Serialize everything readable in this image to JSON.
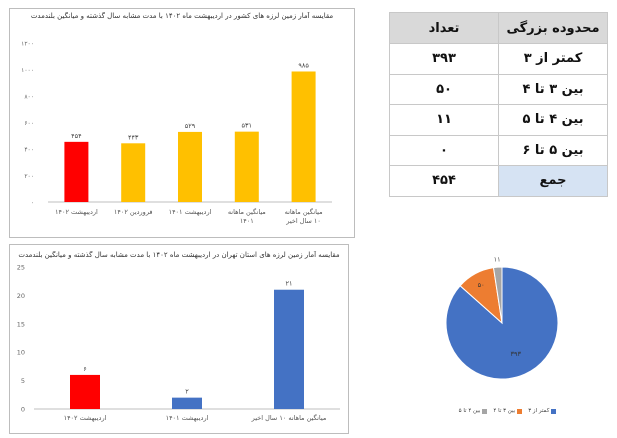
{
  "chart_data": [
    {
      "type": "bar",
      "title": "مقایسه آمار زمین لرزه های کشور در اردیبهشت ماه ۱۴۰۲ با مدت مشابه سال گذشته و میانگین بلندمدت",
      "categories": [
        "اردیبهشت ۱۴۰۲",
        "فروردین ۱۴۰۲",
        "اردیبهشت ۱۴۰۱",
        "میانگین ماهانه ۱۴۰۱",
        "میانگین ماهانه ۱۰ سال اخیر"
      ],
      "values": [
        454,
        443,
        529,
        531,
        985
      ],
      "value_labels": [
        "۴۵۴",
        "۴۴۳",
        "۵۲۹",
        "۵۳۱",
        "۹۸۵"
      ],
      "bar_colors": [
        "#ff0000",
        "#ffc000",
        "#ffc000",
        "#ffc000",
        "#ffc000"
      ],
      "ylim": [
        0,
        1200
      ],
      "yticks": [
        0,
        200,
        400,
        600,
        800,
        1000,
        1200
      ],
      "ytick_labels": [
        "۰",
        "۲۰۰",
        "۴۰۰",
        "۶۰۰",
        "۸۰۰",
        "۱۰۰۰",
        "۱۲۰۰"
      ],
      "grid": false
    },
    {
      "type": "bar",
      "title": "مقایسه آمار زمین لرزه های استان تهران در اردیبهشت ماه ۱۴۰۲ با مدت مشابه سال گذشته و میانگین بلندمدت",
      "categories": [
        "اردیبهشت ۱۴۰۲",
        "اردیبهشت ۱۴۰۱",
        "میانگین ماهانه ۱۰ سال اخیر"
      ],
      "values": [
        6,
        2,
        21
      ],
      "value_labels": [
        "۶",
        "۲",
        "۲۱"
      ],
      "bar_colors": [
        "#ff0000",
        "#4472c4",
        "#4472c4"
      ],
      "ylim": [
        0,
        25
      ],
      "yticks": [
        0,
        5,
        10,
        15,
        20,
        25
      ],
      "ytick_labels": [
        "0",
        "5",
        "10",
        "15",
        "20",
        "25"
      ],
      "grid": false
    },
    {
      "type": "pie",
      "labels": [
        "کمتر از ۳",
        "بین ۳ تا ۴",
        "بین ۴ تا ۵"
      ],
      "values": [
        393,
        50,
        11
      ],
      "value_labels": [
        "۳۹۳",
        "۵۰",
        "۱۱"
      ],
      "colors": [
        "#4472c4",
        "#ed7d31",
        "#a5a5a5"
      ],
      "legend": "bottom"
    }
  ],
  "table": {
    "header_category": "محدوده بزرگی",
    "header_count": "تعداد",
    "rows": [
      {
        "category": "کمتر از ۳",
        "count": "۳۹۳"
      },
      {
        "category": "بین ۳ تا ۴",
        "count": "۵۰"
      },
      {
        "category": "بین ۴ تا ۵",
        "count": "۱۱"
      },
      {
        "category": "بین ۵ تا ۶",
        "count": "۰"
      }
    ],
    "total_label": "جمع",
    "total_value": "۴۵۴"
  }
}
